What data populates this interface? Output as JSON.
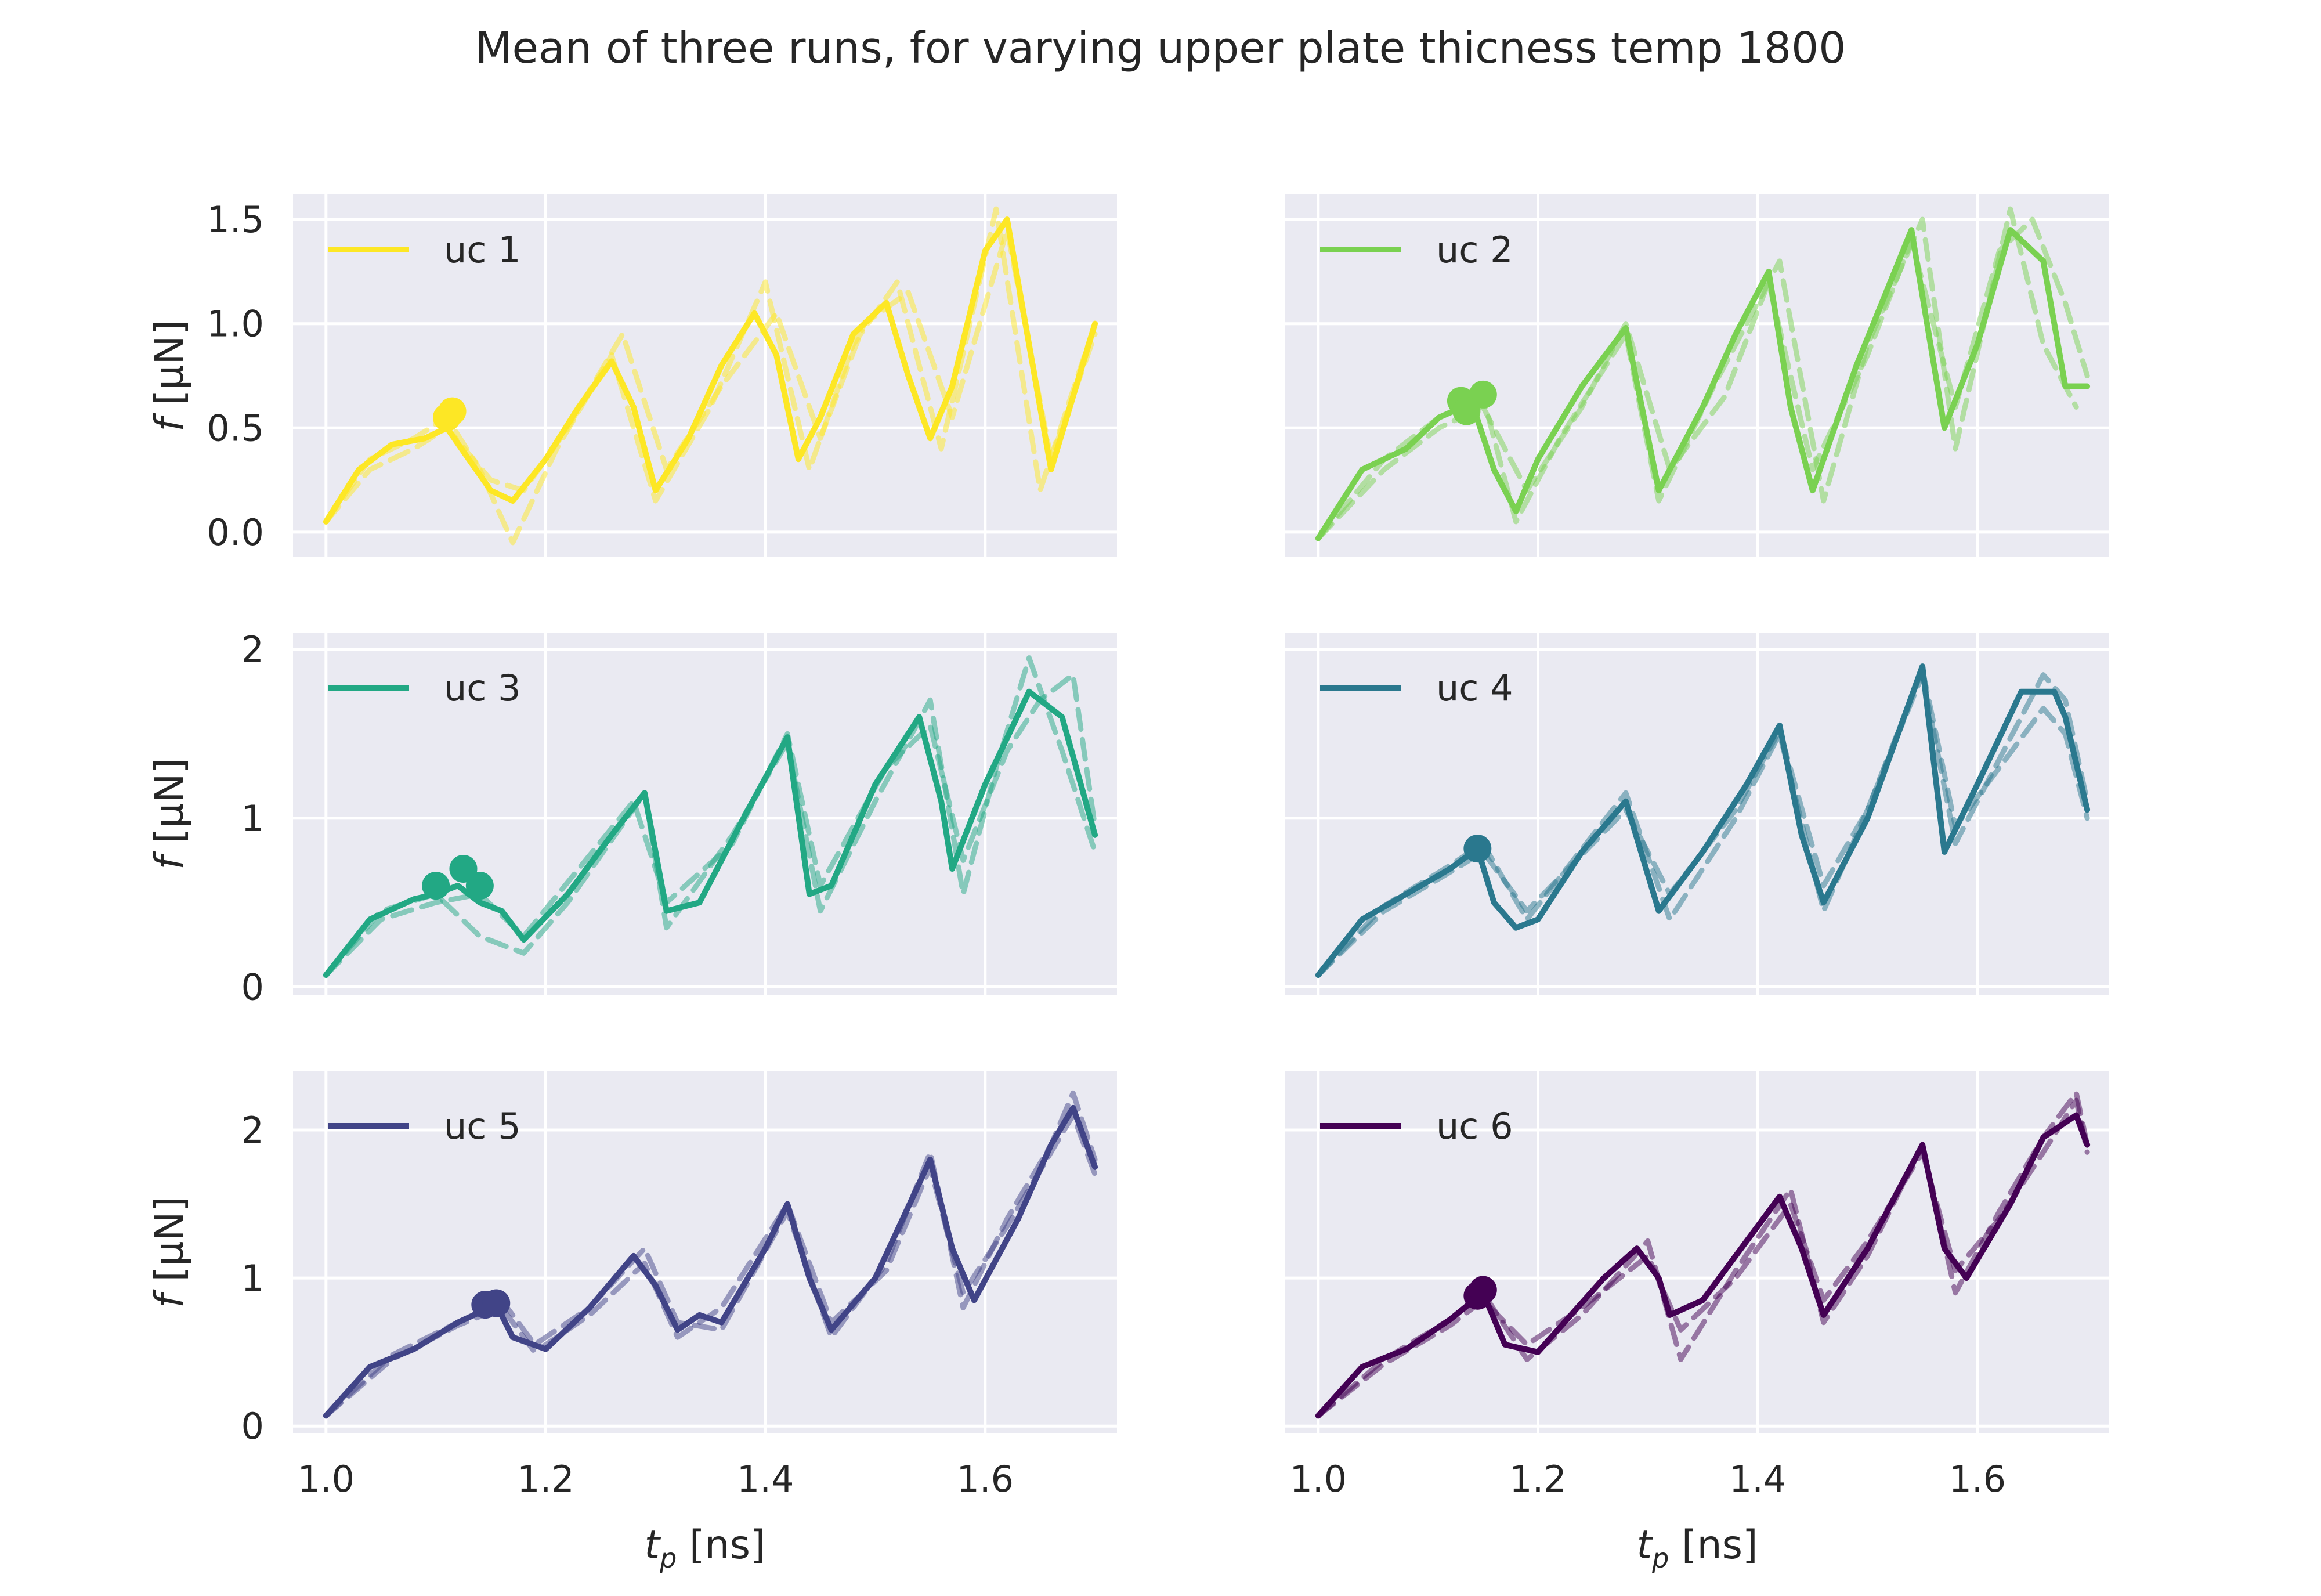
{
  "title": "Mean of three runs, for varying upper plate thicness temp 1800",
  "chart_data": {
    "type": "line",
    "xlabel": "t_p [ns]",
    "ylabel": "f [μN]",
    "xlim": [
      0.97,
      1.72
    ],
    "xticks": [
      1.0,
      1.2,
      1.4,
      1.6
    ],
    "xtick_labels": [
      "1.0",
      "1.2",
      "1.4",
      "1.6"
    ],
    "grid": true,
    "legend_position": "top-left",
    "line_styles": {
      "mean": "solid",
      "runs": "dashed, semi-transparent"
    },
    "panels": [
      {
        "label": "uc 1",
        "color": "#fde725",
        "ylim": [
          -0.12,
          1.62
        ],
        "yticks": [
          0.0,
          0.5,
          1.0,
          1.5
        ],
        "ytick_labels": [
          "0.0",
          "0.5",
          "1.0",
          "1.5"
        ],
        "markers": [
          [
            1.11,
            0.55
          ],
          [
            1.115,
            0.58
          ]
        ],
        "mean": {
          "x": [
            1.0,
            1.03,
            1.06,
            1.09,
            1.11,
            1.13,
            1.15,
            1.17,
            1.2,
            1.23,
            1.26,
            1.28,
            1.3,
            1.33,
            1.36,
            1.39,
            1.41,
            1.43,
            1.45,
            1.48,
            1.51,
            1.53,
            1.55,
            1.57,
            1.6,
            1.62,
            1.64,
            1.66,
            1.7
          ],
          "y": [
            0.05,
            0.3,
            0.42,
            0.45,
            0.5,
            0.35,
            0.2,
            0.15,
            0.35,
            0.6,
            0.82,
            0.6,
            0.2,
            0.45,
            0.8,
            1.05,
            0.85,
            0.35,
            0.55,
            0.95,
            1.1,
            0.75,
            0.45,
            0.7,
            1.35,
            1.5,
            0.9,
            0.3,
            1.0
          ]
        },
        "runs": [
          {
            "x": [
              1.0,
              1.04,
              1.08,
              1.11,
              1.14,
              1.17,
              1.21,
              1.26,
              1.3,
              1.35,
              1.4,
              1.44,
              1.48,
              1.52,
              1.56,
              1.61,
              1.65,
              1.7
            ],
            "y": [
              0.05,
              0.35,
              0.45,
              0.55,
              0.3,
              -0.05,
              0.4,
              0.85,
              0.15,
              0.6,
              1.2,
              0.3,
              0.9,
              1.2,
              0.4,
              1.55,
              0.2,
              1.0
            ]
          },
          {
            "x": [
              1.0,
              1.04,
              1.08,
              1.11,
              1.15,
              1.18,
              1.22,
              1.27,
              1.31,
              1.36,
              1.41,
              1.45,
              1.49,
              1.53,
              1.57,
              1.62,
              1.66,
              1.7
            ],
            "y": [
              0.05,
              0.3,
              0.4,
              0.5,
              0.25,
              0.2,
              0.5,
              0.95,
              0.3,
              0.7,
              1.05,
              0.45,
              1.0,
              1.15,
              0.55,
              1.45,
              0.35,
              0.95
            ]
          }
        ]
      },
      {
        "label": "uc 2",
        "color": "#7ad151",
        "ylim": [
          -0.12,
          1.62
        ],
        "yticks": [
          0.0,
          0.5,
          1.0,
          1.5
        ],
        "ytick_labels": [],
        "markers": [
          [
            1.13,
            0.63
          ],
          [
            1.15,
            0.66
          ],
          [
            1.135,
            0.58
          ]
        ],
        "mean": {
          "x": [
            1.0,
            1.04,
            1.08,
            1.11,
            1.14,
            1.16,
            1.18,
            1.2,
            1.24,
            1.28,
            1.31,
            1.35,
            1.38,
            1.41,
            1.43,
            1.45,
            1.49,
            1.54,
            1.57,
            1.6,
            1.63,
            1.66,
            1.68,
            1.7
          ],
          "y": [
            -0.03,
            0.3,
            0.4,
            0.55,
            0.62,
            0.3,
            0.1,
            0.35,
            0.7,
            0.98,
            0.2,
            0.6,
            0.95,
            1.25,
            0.6,
            0.2,
            0.8,
            1.45,
            0.5,
            0.9,
            1.45,
            1.3,
            0.7,
            0.7
          ]
        },
        "runs": [
          {
            "x": [
              1.0,
              1.06,
              1.11,
              1.15,
              1.18,
              1.22,
              1.28,
              1.31,
              1.36,
              1.42,
              1.46,
              1.5,
              1.55,
              1.58,
              1.63,
              1.66,
              1.69
            ],
            "y": [
              -0.03,
              0.35,
              0.55,
              0.65,
              0.05,
              0.45,
              0.95,
              0.15,
              0.7,
              1.3,
              0.15,
              0.9,
              1.5,
              0.4,
              1.55,
              0.9,
              0.6
            ]
          },
          {
            "x": [
              1.0,
              1.06,
              1.11,
              1.15,
              1.19,
              1.24,
              1.28,
              1.32,
              1.37,
              1.41,
              1.45,
              1.5,
              1.54,
              1.58,
              1.62,
              1.65,
              1.68,
              1.7
            ],
            "y": [
              -0.03,
              0.3,
              0.5,
              0.6,
              0.2,
              0.6,
              1.0,
              0.3,
              0.65,
              1.2,
              0.3,
              0.85,
              1.4,
              0.6,
              1.35,
              1.5,
              1.1,
              0.75
            ]
          }
        ]
      },
      {
        "label": "uc 3",
        "color": "#22a884",
        "ylim": [
          -0.05,
          2.1
        ],
        "yticks": [
          0,
          1,
          2
        ],
        "ytick_labels": [
          "0",
          "1",
          "2"
        ],
        "markers": [
          [
            1.1,
            0.6
          ],
          [
            1.125,
            0.7
          ],
          [
            1.14,
            0.6
          ]
        ],
        "mean": {
          "x": [
            1.0,
            1.04,
            1.08,
            1.1,
            1.12,
            1.14,
            1.16,
            1.18,
            1.22,
            1.26,
            1.29,
            1.31,
            1.34,
            1.38,
            1.42,
            1.44,
            1.46,
            1.5,
            1.54,
            1.56,
            1.57,
            1.6,
            1.64,
            1.67,
            1.7
          ],
          "y": [
            0.07,
            0.4,
            0.52,
            0.55,
            0.6,
            0.5,
            0.45,
            0.28,
            0.55,
            0.9,
            1.15,
            0.45,
            0.5,
            1.0,
            1.48,
            0.55,
            0.6,
            1.2,
            1.6,
            1.1,
            0.7,
            1.2,
            1.75,
            1.6,
            0.9
          ]
        },
        "runs": [
          {
            "x": [
              1.0,
              1.05,
              1.1,
              1.14,
              1.18,
              1.22,
              1.29,
              1.31,
              1.37,
              1.42,
              1.45,
              1.5,
              1.55,
              1.58,
              1.61,
              1.64,
              1.67,
              1.7
            ],
            "y": [
              0.07,
              0.45,
              0.55,
              0.3,
              0.2,
              0.5,
              1.15,
              0.35,
              0.9,
              1.45,
              0.45,
              1.1,
              1.7,
              0.55,
              1.3,
              1.95,
              1.4,
              0.8
            ]
          },
          {
            "x": [
              1.0,
              1.05,
              1.1,
              1.14,
              1.18,
              1.23,
              1.28,
              1.31,
              1.37,
              1.42,
              1.45,
              1.51,
              1.55,
              1.58,
              1.62,
              1.65,
              1.68,
              1.7
            ],
            "y": [
              0.07,
              0.4,
              0.5,
              0.55,
              0.3,
              0.7,
              1.1,
              0.5,
              0.85,
              1.5,
              0.6,
              1.3,
              1.55,
              0.75,
              1.4,
              1.7,
              1.85,
              0.95
            ]
          }
        ]
      },
      {
        "label": "uc 4",
        "color": "#2a788e",
        "ylim": [
          -0.05,
          2.1
        ],
        "yticks": [
          0,
          1,
          2
        ],
        "ytick_labels": [],
        "markers": [
          [
            1.145,
            0.82
          ]
        ],
        "mean": {
          "x": [
            1.0,
            1.04,
            1.08,
            1.12,
            1.145,
            1.16,
            1.18,
            1.2,
            1.24,
            1.28,
            1.31,
            1.35,
            1.39,
            1.42,
            1.44,
            1.46,
            1.5,
            1.55,
            1.57,
            1.6,
            1.64,
            1.67,
            1.68,
            1.7
          ],
          "y": [
            0.07,
            0.4,
            0.55,
            0.7,
            0.82,
            0.5,
            0.35,
            0.4,
            0.8,
            1.1,
            0.45,
            0.8,
            1.2,
            1.55,
            0.9,
            0.5,
            1.0,
            1.9,
            0.8,
            1.2,
            1.75,
            1.75,
            1.6,
            1.05
          ]
        },
        "runs": [
          {
            "x": [
              1.0,
              1.06,
              1.12,
              1.15,
              1.19,
              1.28,
              1.32,
              1.38,
              1.42,
              1.46,
              1.5,
              1.55,
              1.58,
              1.62,
              1.66,
              1.68,
              1.7
            ],
            "y": [
              0.07,
              0.48,
              0.72,
              0.85,
              0.4,
              1.15,
              0.4,
              1.0,
              1.5,
              0.45,
              1.05,
              1.85,
              0.85,
              1.35,
              1.85,
              1.7,
              1.1
            ]
          },
          {
            "x": [
              1.0,
              1.06,
              1.12,
              1.15,
              1.19,
              1.28,
              1.32,
              1.38,
              1.42,
              1.46,
              1.5,
              1.55,
              1.58,
              1.62,
              1.66,
              1.68,
              1.7
            ],
            "y": [
              0.07,
              0.45,
              0.68,
              0.8,
              0.45,
              1.05,
              0.55,
              1.05,
              1.52,
              0.6,
              1.05,
              1.88,
              0.95,
              1.3,
              1.65,
              1.5,
              1.0
            ]
          }
        ]
      },
      {
        "label": "uc 5",
        "color": "#414487",
        "ylim": [
          -0.05,
          2.4
        ],
        "yticks": [
          0,
          1,
          2
        ],
        "ytick_labels": [
          "0",
          "1",
          "2"
        ],
        "markers": [
          [
            1.145,
            0.82
          ],
          [
            1.155,
            0.83
          ]
        ],
        "mean": {
          "x": [
            1.0,
            1.04,
            1.08,
            1.12,
            1.155,
            1.17,
            1.2,
            1.24,
            1.28,
            1.3,
            1.32,
            1.34,
            1.36,
            1.4,
            1.42,
            1.44,
            1.46,
            1.5,
            1.55,
            1.57,
            1.59,
            1.63,
            1.66,
            1.68,
            1.7
          ],
          "y": [
            0.07,
            0.4,
            0.52,
            0.7,
            0.82,
            0.6,
            0.52,
            0.8,
            1.15,
            0.95,
            0.65,
            0.75,
            0.7,
            1.2,
            1.5,
            1.0,
            0.65,
            1.0,
            1.8,
            1.2,
            0.85,
            1.4,
            1.9,
            2.15,
            1.75
          ]
        },
        "runs": [
          {
            "x": [
              1.0,
              1.06,
              1.12,
              1.16,
              1.19,
              1.24,
              1.29,
              1.32,
              1.36,
              1.42,
              1.46,
              1.51,
              1.55,
              1.58,
              1.62,
              1.66,
              1.68,
              1.7
            ],
            "y": [
              0.07,
              0.48,
              0.7,
              0.85,
              0.55,
              0.8,
              1.2,
              0.7,
              0.65,
              1.45,
              0.6,
              1.1,
              1.85,
              0.8,
              1.4,
              1.9,
              2.25,
              1.8
            ]
          },
          {
            "x": [
              1.0,
              1.06,
              1.12,
              1.16,
              1.19,
              1.24,
              1.29,
              1.32,
              1.36,
              1.42,
              1.46,
              1.51,
              1.55,
              1.58,
              1.62,
              1.66,
              1.68,
              1.7
            ],
            "y": [
              0.07,
              0.45,
              0.68,
              0.8,
              0.5,
              0.75,
              1.1,
              0.6,
              0.8,
              1.5,
              0.7,
              1.05,
              1.75,
              0.9,
              1.35,
              1.85,
              2.1,
              1.7
            ]
          }
        ]
      },
      {
        "label": "uc 6",
        "color": "#440154",
        "ylim": [
          -0.05,
          2.4
        ],
        "yticks": [
          0,
          1,
          2
        ],
        "ytick_labels": [],
        "markers": [
          [
            1.145,
            0.88
          ],
          [
            1.15,
            0.92
          ]
        ],
        "mean": {
          "x": [
            1.0,
            1.04,
            1.08,
            1.12,
            1.15,
            1.17,
            1.2,
            1.23,
            1.26,
            1.29,
            1.31,
            1.32,
            1.35,
            1.38,
            1.42,
            1.44,
            1.46,
            1.5,
            1.55,
            1.57,
            1.59,
            1.63,
            1.66,
            1.69,
            1.7
          ],
          "y": [
            0.07,
            0.4,
            0.52,
            0.72,
            0.9,
            0.55,
            0.5,
            0.75,
            1.0,
            1.2,
            1.0,
            0.75,
            0.85,
            1.15,
            1.55,
            1.2,
            0.75,
            1.2,
            1.9,
            1.2,
            1.0,
            1.5,
            1.95,
            2.1,
            1.9
          ]
        },
        "runs": [
          {
            "x": [
              1.0,
              1.06,
              1.12,
              1.15,
              1.19,
              1.24,
              1.3,
              1.33,
              1.38,
              1.43,
              1.46,
              1.5,
              1.55,
              1.58,
              1.62,
              1.66,
              1.69,
              1.7
            ],
            "y": [
              0.07,
              0.45,
              0.72,
              0.9,
              0.45,
              0.75,
              1.25,
              0.45,
              1.05,
              1.6,
              0.7,
              1.15,
              1.9,
              0.9,
              1.45,
              1.95,
              2.25,
              1.9
            ]
          },
          {
            "x": [
              1.0,
              1.06,
              1.12,
              1.15,
              1.19,
              1.24,
              1.3,
              1.33,
              1.38,
              1.43,
              1.46,
              1.5,
              1.55,
              1.58,
              1.62,
              1.66,
              1.69,
              1.7
            ],
            "y": [
              0.07,
              0.42,
              0.68,
              0.85,
              0.55,
              0.8,
              1.15,
              0.65,
              1.0,
              1.5,
              0.85,
              1.25,
              1.85,
              1.05,
              1.4,
              1.85,
              2.2,
              1.85
            ]
          }
        ]
      }
    ]
  }
}
